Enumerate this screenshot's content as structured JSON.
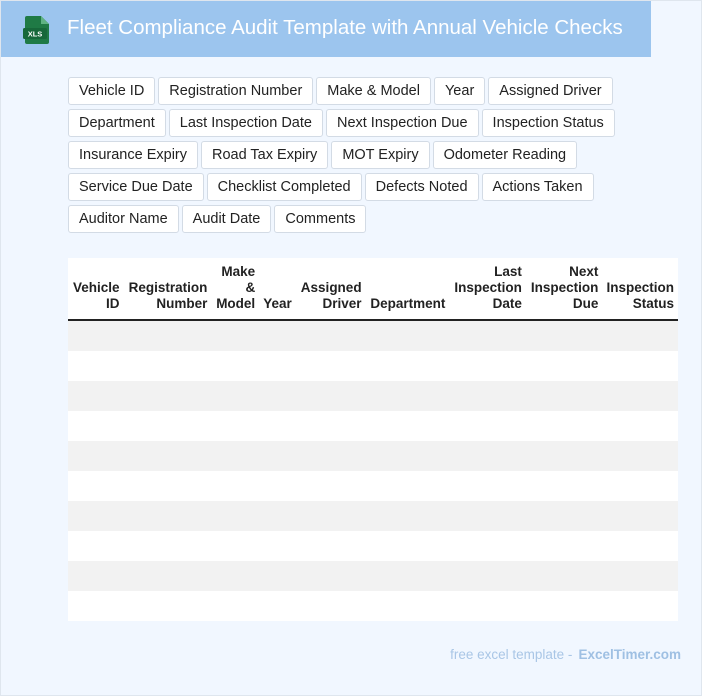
{
  "header": {
    "title": "Fleet Compliance Audit Template with Annual Vehicle Checks",
    "file_icon": "xls-file-icon",
    "file_icon_label": "XLS",
    "brand_color": "#9cc5ee"
  },
  "fields": [
    "Vehicle ID",
    "Registration Number",
    "Make & Model",
    "Year",
    "Assigned Driver",
    "Department",
    "Last Inspection Date",
    "Next Inspection Due",
    "Inspection Status",
    "Insurance Expiry",
    "Road Tax Expiry",
    "MOT Expiry",
    "Odometer Reading",
    "Service Due Date",
    "Checklist Completed",
    "Defects Noted",
    "Actions Taken",
    "Auditor Name",
    "Audit Date",
    "Comments"
  ],
  "table": {
    "columns": [
      "Vehicle ID",
      "Registration Number",
      "Make & Model",
      "Year",
      "Assigned Driver",
      "Department",
      "Last Inspection Date",
      "Next Inspection Due",
      "Inspection Status"
    ],
    "row_count": 10,
    "stripe_color": "#f2f2f2"
  },
  "footer": {
    "text": "free excel template -",
    "brand": "ExcelTimer.com"
  }
}
